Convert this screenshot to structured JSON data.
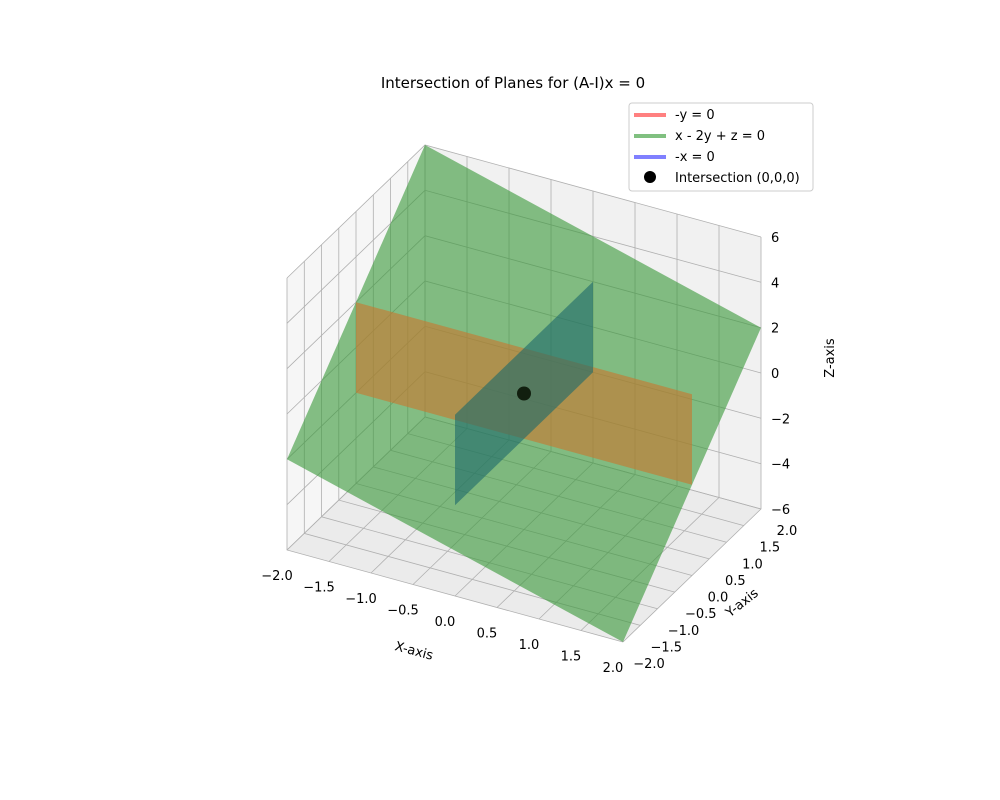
{
  "chart_data": {
    "type": "surface3d",
    "title": "Intersection of Planes for (A-I)x = 0",
    "xlabel": "X-axis",
    "ylabel": "Y-axis",
    "zlabel": "Z-axis",
    "xlim": [
      -2,
      2
    ],
    "ylim": [
      -2,
      2
    ],
    "zlim": [
      -6,
      6
    ],
    "x_ticks": [
      "−2.0",
      "−1.5",
      "−1.0",
      "−0.5",
      "0.0",
      "0.5",
      "1.0",
      "1.5",
      "2.0"
    ],
    "y_ticks": [
      "−2.0",
      "−1.5",
      "−1.0",
      "−0.5",
      "0.0",
      "0.5",
      "1.0",
      "1.5",
      "2.0"
    ],
    "z_ticks": [
      "−6",
      "−4",
      "−2",
      "0",
      "2",
      "4",
      "6"
    ],
    "x_tick_values": [
      -2,
      -1.5,
      -1,
      -0.5,
      0,
      0.5,
      1,
      1.5,
      2
    ],
    "y_tick_values": [
      -2,
      -1.5,
      -1,
      -0.5,
      0,
      0.5,
      1,
      1.5,
      2
    ],
    "z_tick_values": [
      -6,
      -4,
      -2,
      0,
      2,
      4,
      6
    ],
    "legend_position": "top-right",
    "grid": true,
    "series": [
      {
        "name": "-y = 0",
        "equation": "y = 0",
        "color": "#ff8080"
      },
      {
        "name": "x - 2y + z = 0",
        "equation": "z = 2y - x",
        "color": "#80c080"
      },
      {
        "name": "-x = 0",
        "equation": "x = 0",
        "color": "#8080ff"
      }
    ],
    "point": {
      "name": "Intersection (0,0,0)",
      "x": 0,
      "y": 0,
      "z": 0,
      "color": "#000000"
    }
  }
}
